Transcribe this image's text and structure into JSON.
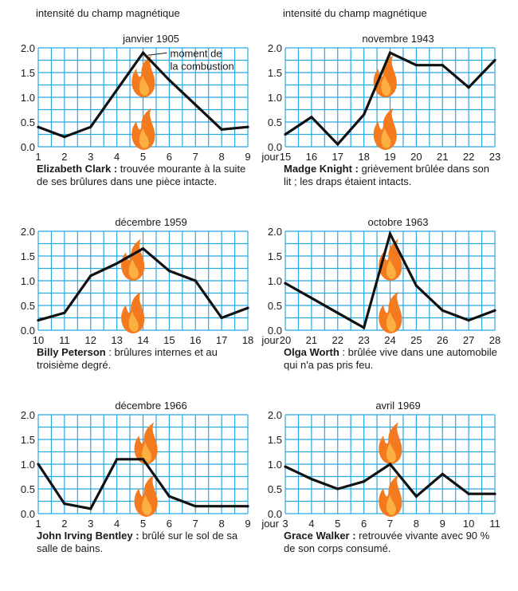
{
  "header": {
    "left_ylabel": "intensité du champ magnétique",
    "right_ylabel": "intensité du champ magnétique"
  },
  "colors": {
    "grid": "#29a8e0",
    "line": "#111111",
    "flame_outer": "#f47a20",
    "flame_inner": "#fbb040"
  },
  "icon": "flame-icon",
  "chart_data": [
    {
      "type": "line",
      "title": "janvier 1905",
      "xlabel": "",
      "ylabel": "intensité du champ magnétique",
      "x": [
        1,
        2,
        3,
        4,
        5,
        6,
        7,
        8,
        9
      ],
      "values": [
        0.4,
        0.2,
        0.4,
        1.15,
        1.9,
        1.35,
        0.85,
        0.35,
        0.4
      ],
      "xlim": [
        1,
        9
      ],
      "ylim": [
        0,
        2.0
      ],
      "xticks": [
        "1",
        "2",
        "3",
        "4",
        "5",
        "6",
        "7",
        "8",
        "9"
      ],
      "yticks": [
        "0.0",
        "0.5",
        "1.0",
        "1.5",
        "2.0"
      ],
      "combustion_x": 5,
      "annotation": "moment de la combustion",
      "caption_name": "Elizabeth Clark :",
      "caption_text": " trouvée mourante à la suite de ses brûlures dans une pièce intacte."
    },
    {
      "type": "line",
      "title": "novembre 1943",
      "xlabel": "jour",
      "ylabel": "intensité du champ magnétique",
      "x": [
        15,
        16,
        17,
        18,
        19,
        20,
        21,
        22,
        23
      ],
      "values": [
        0.25,
        0.6,
        0.05,
        0.65,
        1.9,
        1.65,
        1.65,
        1.2,
        1.75
      ],
      "xlim": [
        15,
        23
      ],
      "ylim": [
        0,
        2.0
      ],
      "xticks": [
        "15",
        "16",
        "17",
        "18",
        "19",
        "20",
        "21",
        "22",
        "23"
      ],
      "yticks": [
        "0.0",
        "0.5",
        "1.0",
        "1.5",
        "2.0"
      ],
      "combustion_x": 18.8,
      "caption_name": "Madge Knight :",
      "caption_text": " grièvement brûlée dans son lit ; les draps étaient intacts."
    },
    {
      "type": "line",
      "title": "décembre 1959",
      "xlabel": "",
      "ylabel": "",
      "x": [
        10,
        11,
        12,
        13,
        14,
        15,
        16,
        17,
        18
      ],
      "values": [
        0.2,
        0.35,
        1.1,
        1.35,
        1.65,
        1.2,
        1.0,
        0.25,
        0.45
      ],
      "xlim": [
        10,
        18
      ],
      "ylim": [
        0,
        2.0
      ],
      "xticks": [
        "10",
        "11",
        "12",
        "13",
        "14",
        "15",
        "16",
        "17",
        "18"
      ],
      "yticks": [
        "0.0",
        "0.5",
        "1.0",
        "1.5",
        "2.0"
      ],
      "combustion_x": 13.6,
      "caption_name": "Billy Peterson",
      "caption_text": " : brûlures internes et au troisième degré."
    },
    {
      "type": "line",
      "title": "octobre 1963",
      "xlabel": "jour",
      "ylabel": "",
      "x": [
        20,
        21,
        22,
        23,
        24,
        25,
        26,
        27,
        28
      ],
      "values": [
        0.95,
        0.65,
        0.35,
        0.05,
        1.95,
        0.9,
        0.4,
        0.2,
        0.4
      ],
      "xlim": [
        20,
        28
      ],
      "ylim": [
        0,
        2.0
      ],
      "xticks": [
        "20",
        "21",
        "22",
        "23",
        "24",
        "25",
        "26",
        "27",
        "28"
      ],
      "yticks": [
        "0.0",
        "0.5",
        "1.0",
        "1.5",
        "2.0"
      ],
      "combustion_x": 24,
      "caption_name": "Olga Worth",
      "caption_text": " : brûlée vive dans une automobile qui n'a pas pris feu."
    },
    {
      "type": "line",
      "title": "décembre 1966",
      "xlabel": "",
      "ylabel": "",
      "x": [
        1,
        2,
        3,
        4,
        5,
        6,
        7,
        8,
        9
      ],
      "values": [
        1.0,
        0.2,
        0.1,
        1.1,
        1.1,
        0.35,
        0.15,
        0.15,
        0.15
      ],
      "xlim": [
        1,
        9
      ],
      "ylim": [
        0,
        2.0
      ],
      "xticks": [
        "1",
        "2",
        "3",
        "4",
        "5",
        "6",
        "7",
        "8",
        "9"
      ],
      "yticks": [
        "0.0",
        "0.5",
        "1.0",
        "1.5",
        "2.0"
      ],
      "combustion_x": 5.1,
      "caption_name": "John Irving Bentley :",
      "caption_text": " brûlé sur le sol de sa salle de bains."
    },
    {
      "type": "line",
      "title": "avril 1969",
      "xlabel": "jour",
      "ylabel": "",
      "x": [
        3,
        4,
        5,
        6,
        7,
        8,
        9,
        10,
        11
      ],
      "values": [
        0.95,
        0.7,
        0.5,
        0.65,
        1.0,
        0.35,
        0.8,
        0.4,
        0.4
      ],
      "xlim": [
        3,
        11
      ],
      "ylim": [
        0,
        2.0
      ],
      "xticks": [
        "3",
        "4",
        "5",
        "6",
        "7",
        "8",
        "9",
        "10",
        "11"
      ],
      "yticks": [
        "0.0",
        "0.5",
        "1.0",
        "1.5",
        "2.0"
      ],
      "combustion_x": 7,
      "caption_name": "Grace Walker :",
      "caption_text": " retrouvée vivante avec 90 % de son corps consumé."
    }
  ]
}
